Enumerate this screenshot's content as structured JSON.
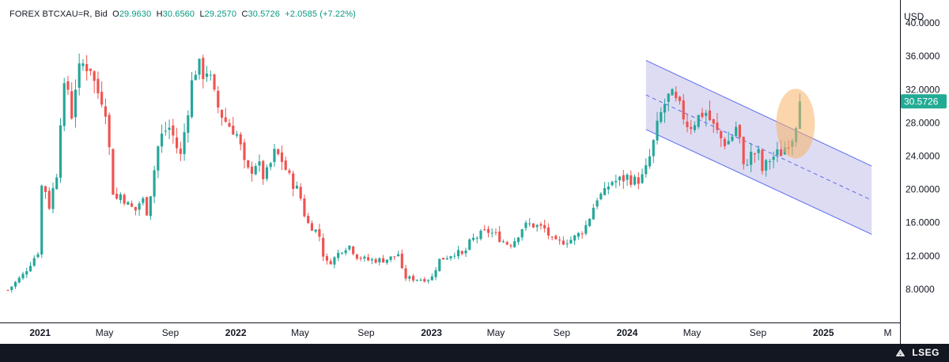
{
  "header": {
    "symbol": "FOREX BTCXAU=R, Bid",
    "o_label": "O",
    "o_value": "29.9630",
    "h_label": "H",
    "h_value": "30.6560",
    "l_label": "L",
    "l_value": "29.2570",
    "c_label": "C",
    "c_value": "30.5726",
    "change": "+2.0585 (+7.22%)"
  },
  "footer": {
    "brand": "LSEG"
  },
  "colors": {
    "up": "#26a69a",
    "down": "#ef5350",
    "last_price_bg": "#22ab94",
    "channel_fill": "#d6d3f0",
    "channel_line": "#5b6bf0",
    "highlight": "#f7b267"
  },
  "chart_data": {
    "type": "candlestick",
    "currency_label": "USD",
    "ylim": [
      4,
      42
    ],
    "y_ticks": [
      "40.0000",
      "36.0000",
      "32.0000",
      "28.0000",
      "24.0000",
      "20.0000",
      "16.0000",
      "12.0000",
      "8.0000"
    ],
    "y_tick_values": [
      40,
      36,
      32,
      28,
      24,
      20,
      16,
      12,
      8
    ],
    "x_ticks": [
      {
        "label": "2021",
        "date": "2021-01-01",
        "bold": true
      },
      {
        "label": "May",
        "date": "2021-05-01",
        "bold": false
      },
      {
        "label": "Sep",
        "date": "2021-09-01",
        "bold": false
      },
      {
        "label": "2022",
        "date": "2022-01-01",
        "bold": true
      },
      {
        "label": "May",
        "date": "2022-05-01",
        "bold": false
      },
      {
        "label": "Sep",
        "date": "2022-09-01",
        "bold": false
      },
      {
        "label": "2023",
        "date": "2023-01-01",
        "bold": true
      },
      {
        "label": "May",
        "date": "2023-05-01",
        "bold": false
      },
      {
        "label": "Sep",
        "date": "2023-09-01",
        "bold": false
      },
      {
        "label": "2024",
        "date": "2024-01-01",
        "bold": true
      },
      {
        "label": "May",
        "date": "2024-05-01",
        "bold": false
      },
      {
        "label": "Sep",
        "date": "2024-09-01",
        "bold": false
      },
      {
        "label": "2025",
        "date": "2025-01-01",
        "bold": true
      },
      {
        "label": "M",
        "date": "2025-05-01",
        "bold": false
      }
    ],
    "x_range": [
      "2020-10-30",
      "2025-05-12"
    ],
    "last_price": 30.5726,
    "last_price_label": "30.5726",
    "close_path": [
      [
        "2020-11-02",
        7.9
      ],
      [
        "2020-12-01",
        9.8
      ],
      [
        "2020-12-28",
        12.5
      ],
      [
        "2021-01-05",
        21.5
      ],
      [
        "2021-01-18",
        18.0
      ],
      [
        "2021-02-01",
        22.0
      ],
      [
        "2021-02-10",
        30.5
      ],
      [
        "2021-02-20",
        33.0
      ],
      [
        "2021-03-01",
        29.0
      ],
      [
        "2021-03-10",
        33.5
      ],
      [
        "2021-03-22",
        35.0
      ],
      [
        "2021-04-05",
        34.8
      ],
      [
        "2021-04-15",
        32.0
      ],
      [
        "2021-04-26",
        31.0
      ],
      [
        "2021-05-07",
        29.0
      ],
      [
        "2021-05-12",
        22.0
      ],
      [
        "2021-05-20",
        18.5
      ],
      [
        "2021-06-01",
        19.5
      ],
      [
        "2021-06-15",
        18.0
      ],
      [
        "2021-06-28",
        17.5
      ],
      [
        "2021-07-10",
        19.0
      ],
      [
        "2021-07-20",
        17.2
      ],
      [
        "2021-08-01",
        22.0
      ],
      [
        "2021-08-10",
        25.5
      ],
      [
        "2021-08-20",
        27.0
      ],
      [
        "2021-09-01",
        27.5
      ],
      [
        "2021-09-10",
        25.5
      ],
      [
        "2021-09-20",
        24.0
      ],
      [
        "2021-10-01",
        28.5
      ],
      [
        "2021-10-10",
        32.5
      ],
      [
        "2021-10-20",
        35.0
      ],
      [
        "2021-11-01",
        34.0
      ],
      [
        "2021-11-10",
        34.5
      ],
      [
        "2021-11-20",
        31.5
      ],
      [
        "2021-12-01",
        29.5
      ],
      [
        "2021-12-15",
        28.0
      ],
      [
        "2022-01-01",
        27.0
      ],
      [
        "2022-01-10",
        25.0
      ],
      [
        "2022-01-20",
        22.0
      ],
      [
        "2022-02-01",
        22.5
      ],
      [
        "2022-02-10",
        23.5
      ],
      [
        "2022-02-20",
        21.5
      ],
      [
        "2022-03-01",
        22.0
      ],
      [
        "2022-03-15",
        24.5
      ],
      [
        "2022-03-28",
        23.5
      ],
      [
        "2022-04-10",
        21.5
      ],
      [
        "2022-04-25",
        20.0
      ],
      [
        "2022-05-05",
        18.5
      ],
      [
        "2022-05-12",
        16.0
      ],
      [
        "2022-05-25",
        15.5
      ],
      [
        "2022-06-10",
        14.0
      ],
      [
        "2022-06-15",
        11.0
      ],
      [
        "2022-07-01",
        11.5
      ],
      [
        "2022-07-20",
        13.0
      ],
      [
        "2022-08-01",
        13.2
      ],
      [
        "2022-08-15",
        12.0
      ],
      [
        "2022-09-01",
        11.5
      ],
      [
        "2022-09-15",
        11.5
      ],
      [
        "2022-10-01",
        11.5
      ],
      [
        "2022-10-20",
        11.8
      ],
      [
        "2022-11-01",
        12.3
      ],
      [
        "2022-11-09",
        9.5
      ],
      [
        "2022-11-20",
        9.3
      ],
      [
        "2022-12-15",
        9.2
      ],
      [
        "2023-01-01",
        9.3
      ],
      [
        "2023-01-15",
        11.5
      ],
      [
        "2023-02-01",
        12.0
      ],
      [
        "2023-02-15",
        12.5
      ],
      [
        "2023-03-01",
        12.0
      ],
      [
        "2023-03-15",
        13.8
      ],
      [
        "2023-04-01",
        14.5
      ],
      [
        "2023-04-15",
        15.0
      ],
      [
        "2023-05-01",
        14.5
      ],
      [
        "2023-05-20",
        13.5
      ],
      [
        "2023-06-01",
        13.5
      ],
      [
        "2023-06-20",
        15.5
      ],
      [
        "2023-07-05",
        15.8
      ],
      [
        "2023-07-20",
        15.5
      ],
      [
        "2023-08-01",
        15.2
      ],
      [
        "2023-08-17",
        13.5
      ],
      [
        "2023-09-01",
        13.7
      ],
      [
        "2023-09-20",
        14.0
      ],
      [
        "2023-10-01",
        14.5
      ],
      [
        "2023-10-15",
        15.5
      ],
      [
        "2023-10-25",
        17.0
      ],
      [
        "2023-11-05",
        19.0
      ],
      [
        "2023-11-20",
        19.5
      ],
      [
        "2023-12-01",
        21.0
      ],
      [
        "2023-12-15",
        21.0
      ],
      [
        "2024-01-01",
        21.5
      ],
      [
        "2024-01-15",
        21.0
      ],
      [
        "2024-02-01",
        21.5
      ],
      [
        "2024-02-15",
        24.5
      ],
      [
        "2024-03-01",
        28.5
      ],
      [
        "2024-03-15",
        31.0
      ],
      [
        "2024-03-25",
        31.0
      ],
      [
        "2024-04-10",
        29.5
      ],
      [
        "2024-04-25",
        27.5
      ],
      [
        "2024-05-10",
        28.5
      ],
      [
        "2024-05-25",
        29.5
      ],
      [
        "2024-06-10",
        27.5
      ],
      [
        "2024-06-25",
        26.0
      ],
      [
        "2024-07-05",
        25.5
      ],
      [
        "2024-07-15",
        26.5
      ],
      [
        "2024-07-25",
        28.0
      ],
      [
        "2024-08-05",
        22.5
      ],
      [
        "2024-08-15",
        24.0
      ],
      [
        "2024-09-01",
        24.5
      ],
      [
        "2024-09-10",
        22.0
      ],
      [
        "2024-09-20",
        23.5
      ],
      [
        "2024-10-01",
        24.0
      ],
      [
        "2024-10-15",
        24.5
      ],
      [
        "2024-10-25",
        25.5
      ],
      [
        "2024-11-05",
        26.5
      ],
      [
        "2024-11-12",
        28.5
      ],
      [
        "2024-11-22",
        30.57
      ]
    ],
    "channel": {
      "upper": [
        [
          "2024-02-05",
          35.5
        ],
        [
          "2025-04-01",
          22.8
        ]
      ],
      "lower": [
        [
          "2024-02-05",
          27.2
        ],
        [
          "2025-04-01",
          14.6
        ]
      ],
      "mid": [
        [
          "2024-02-05",
          31.35
        ],
        [
          "2025-04-01",
          18.7
        ]
      ]
    },
    "highlight": {
      "center_date": "2024-11-10",
      "center_value": 27.9,
      "rx_days": 36,
      "ry_value": 4.2
    }
  }
}
